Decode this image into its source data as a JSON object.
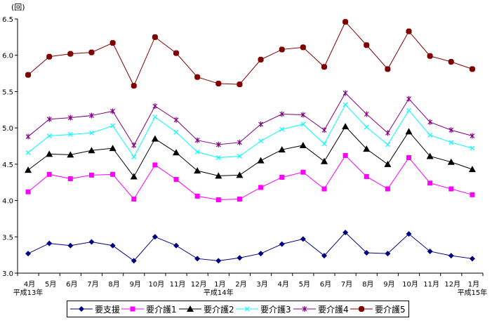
{
  "chart_data": {
    "type": "line",
    "title": "",
    "ylabel": "(回)",
    "xlabel": "",
    "ylim": [
      3.0,
      6.5
    ],
    "yticks": [
      "3.0",
      "3.5",
      "4.0",
      "4.5",
      "5.0",
      "5.5",
      "6.0",
      "6.5"
    ],
    "grid": false,
    "legend_position": "bottom",
    "categories": [
      "4月",
      "5月",
      "6月",
      "7月",
      "8月",
      "9月",
      "10月",
      "11月",
      "12月",
      "1月",
      "2月",
      "3月",
      "4月",
      "5月",
      "6月",
      "7月",
      "8月",
      "9月",
      "10月",
      "11月",
      "12月",
      "1月"
    ],
    "year_labels": [
      {
        "index": 0,
        "label": "平成13年"
      },
      {
        "index": 9,
        "label": "平成14年"
      },
      {
        "index": 21,
        "label": "平成15年"
      }
    ],
    "series": [
      {
        "name": "要支援",
        "color": "#000080",
        "marker": "diamond",
        "values": [
          3.27,
          3.41,
          3.38,
          3.43,
          3.38,
          3.17,
          3.5,
          3.38,
          3.2,
          3.17,
          3.21,
          3.27,
          3.4,
          3.47,
          3.24,
          3.56,
          3.28,
          3.27,
          3.54,
          3.3,
          3.24,
          3.2
        ]
      },
      {
        "name": "要介護1",
        "color": "#FF00FF",
        "marker": "square",
        "values": [
          4.12,
          4.36,
          4.3,
          4.35,
          4.36,
          4.02,
          4.49,
          4.29,
          4.06,
          4.01,
          4.02,
          4.18,
          4.32,
          4.39,
          4.16,
          4.62,
          4.33,
          4.16,
          4.59,
          4.24,
          4.16,
          4.08
        ]
      },
      {
        "name": "要介護2",
        "color": "#000000",
        "marker": "triangle",
        "values": [
          4.42,
          4.64,
          4.63,
          4.69,
          4.72,
          4.33,
          4.85,
          4.66,
          4.41,
          4.34,
          4.35,
          4.55,
          4.7,
          4.76,
          4.54,
          5.02,
          4.71,
          4.5,
          4.95,
          4.61,
          4.53,
          4.43
        ]
      },
      {
        "name": "要介護3",
        "color": "#00FFFF",
        "marker": "x",
        "values": [
          4.66,
          4.89,
          4.91,
          4.93,
          5.03,
          4.6,
          5.15,
          4.94,
          4.67,
          4.59,
          4.61,
          4.82,
          4.98,
          5.05,
          4.78,
          5.32,
          5.01,
          4.77,
          5.24,
          4.9,
          4.8,
          4.72
        ]
      },
      {
        "name": "要介護4",
        "color": "#800080",
        "marker": "star",
        "values": [
          4.88,
          5.12,
          5.14,
          5.17,
          5.23,
          4.76,
          5.3,
          5.11,
          4.83,
          4.77,
          4.8,
          5.05,
          5.19,
          5.18,
          4.97,
          5.48,
          5.19,
          4.93,
          5.4,
          5.08,
          4.97,
          4.89
        ]
      },
      {
        "name": "要介護5",
        "color": "#800000",
        "marker": "circle",
        "values": [
          5.73,
          5.98,
          6.02,
          6.04,
          6.17,
          5.58,
          6.25,
          6.03,
          5.7,
          5.61,
          5.6,
          5.94,
          6.08,
          6.11,
          5.84,
          6.46,
          6.14,
          5.81,
          6.33,
          5.99,
          5.91,
          5.81
        ]
      }
    ]
  }
}
